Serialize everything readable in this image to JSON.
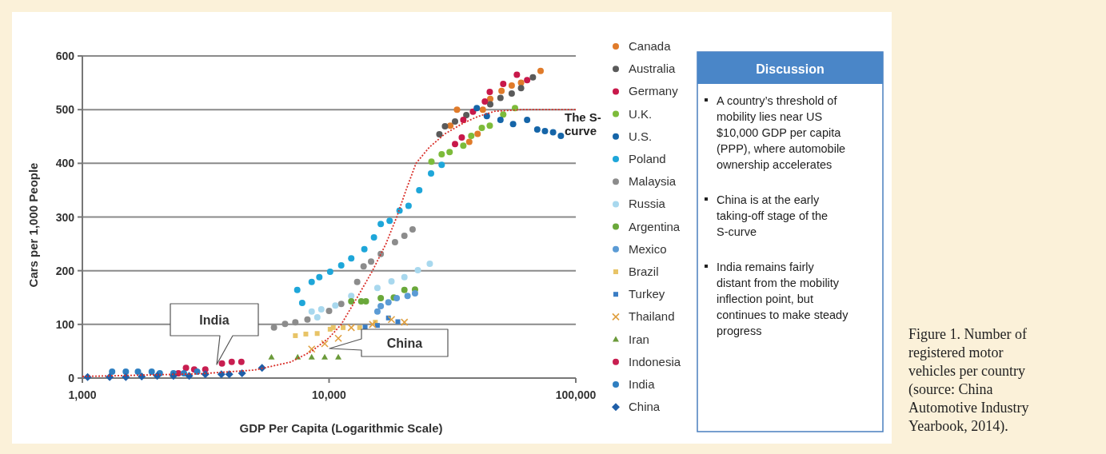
{
  "chart_data": {
    "type": "scatter",
    "xlabel": "GDP Per Capita (Logarithmic Scale)",
    "ylabel": "Cars per 1,000 People",
    "log": "x",
    "xlim": [
      1000,
      100000
    ],
    "ylim": [
      0,
      600
    ],
    "xticks": [
      {
        "value": 1000,
        "label": "1,000"
      },
      {
        "value": 10000,
        "label": "10,000"
      },
      {
        "value": 100000,
        "label": "100,000"
      }
    ],
    "yticks": [
      0,
      100,
      200,
      300,
      400,
      500,
      600
    ],
    "grid": "y",
    "legend": "right",
    "series": [
      {
        "name": "Canada",
        "color": "#e07b2a",
        "marker": "circle",
        "x": [
          31000,
          33000,
          37000,
          40000,
          42000,
          45000,
          50000,
          55000,
          60000,
          72000
        ],
        "values": [
          470,
          500,
          440,
          455,
          500,
          520,
          535,
          545,
          550,
          572
        ]
      },
      {
        "name": "Australia",
        "color": "#5a5a5a",
        "marker": "circle",
        "x": [
          28000,
          29500,
          32400,
          36000,
          45000,
          49500,
          55000,
          60000,
          67000
        ],
        "values": [
          454,
          469,
          478,
          490,
          510,
          522,
          530,
          540,
          560
        ]
      },
      {
        "name": "Germany",
        "color": "#c8184a",
        "marker": "circle",
        "x": [
          32400,
          34500,
          35000,
          38300,
          42800,
          44800,
          50800,
          57700,
          63500
        ],
        "values": [
          436,
          448,
          481,
          496,
          515,
          533,
          548,
          565,
          555
        ]
      },
      {
        "name": "U.K.",
        "color": "#7dbb3a",
        "marker": "circle",
        "x": [
          26000,
          28600,
          30800,
          35000,
          37700,
          41600,
          44800,
          50800,
          56700
        ],
        "values": [
          403,
          417,
          421,
          433,
          451,
          466,
          470,
          491,
          503
        ]
      },
      {
        "name": "U.S.",
        "color": "#1565a8",
        "marker": "circle",
        "x": [
          39700,
          43600,
          49500,
          55700,
          63500,
          69800,
          75000,
          80900,
          87000
        ],
        "values": [
          503,
          488,
          481,
          473,
          481,
          463,
          460,
          458,
          451
        ]
      },
      {
        "name": "Poland",
        "color": "#1ea6d9",
        "marker": "circle",
        "x": [
          7430,
          7780,
          8500,
          9130,
          10100,
          11200,
          12300,
          13900,
          15200,
          16200,
          17600,
          19300,
          21000,
          23200,
          25900,
          28600
        ],
        "values": [
          164,
          140,
          179,
          188,
          198,
          210,
          223,
          240,
          262,
          287,
          293,
          312,
          321,
          350,
          381,
          397
        ]
      },
      {
        "name": "Malaysia",
        "color": "#8c8c8c",
        "marker": "circle",
        "x": [
          5980,
          6630,
          7300,
          8170,
          10000,
          11200,
          13000,
          13800,
          14800,
          16200,
          18500,
          20200,
          21800
        ],
        "values": [
          94,
          101,
          104,
          109,
          125,
          138,
          179,
          208,
          217,
          231,
          253,
          265,
          277
        ]
      },
      {
        "name": "Russia",
        "color": "#a8d8ee",
        "marker": "circle",
        "x": [
          8500,
          8960,
          9300,
          10600,
          12300,
          15700,
          17900,
          20200,
          22900,
          25600
        ],
        "values": [
          124,
          113,
          128,
          135,
          153,
          168,
          180,
          188,
          201,
          213
        ]
      },
      {
        "name": "Argentina",
        "color": "#6aa83a",
        "marker": "circle",
        "x": [
          12300,
          13500,
          14100,
          16200,
          18300,
          20200,
          22300
        ],
        "values": [
          143,
          143,
          143,
          149,
          150,
          164,
          165
        ]
      },
      {
        "name": "Mexico",
        "color": "#5b9bd5",
        "marker": "circle",
        "x": [
          15700,
          16200,
          17400,
          18800,
          20800,
          22300
        ],
        "values": [
          124,
          134,
          141,
          149,
          153,
          158
        ]
      },
      {
        "name": "Brazil",
        "color": "#e8c467",
        "marker": "square",
        "x": [
          7300,
          8050,
          8950,
          10100,
          10400,
          11400,
          13300,
          15400
        ],
        "values": [
          79,
          82,
          83,
          91,
          94,
          94,
          94,
          104
        ]
      },
      {
        "name": "Turkey",
        "color": "#3a7dc4",
        "marker": "square",
        "x": [
          14000,
          15700,
          17400,
          19000
        ],
        "values": [
          95,
          98,
          112,
          105
        ]
      },
      {
        "name": "Thailand",
        "color": "#e0a040",
        "marker": "cross",
        "x": [
          8500,
          9600,
          10900,
          12300,
          15000,
          17900,
          20200
        ],
        "values": [
          54,
          64,
          74,
          94,
          100,
          109,
          104
        ]
      },
      {
        "name": "Iran",
        "color": "#6b9a3a",
        "marker": "triangle",
        "x": [
          5840,
          7460,
          8500,
          9600,
          10900
        ],
        "values": [
          39,
          39,
          39,
          39,
          39
        ]
      },
      {
        "name": "Indonesia",
        "color": "#c81e50",
        "marker": "circle",
        "x": [
          2450,
          2630,
          2840,
          3150,
          3680,
          4030,
          4410
        ],
        "values": [
          9,
          19,
          16,
          16,
          27,
          30,
          30
        ]
      },
      {
        "name": "India",
        "color": "#2f7fc1",
        "marker": "circle",
        "x": [
          1320,
          1500,
          1680,
          1910,
          2060,
          2340,
          2580,
          2920
        ],
        "values": [
          12,
          12,
          12,
          12,
          9,
          9,
          9,
          12
        ]
      },
      {
        "name": "China",
        "color": "#1f5fa8",
        "marker": "diamond",
        "x": [
          1050,
          1290,
          1500,
          1740,
          2010,
          2340,
          2710,
          3150,
          3660,
          3940,
          4440,
          5350
        ],
        "values": [
          2,
          2,
          2,
          3,
          4,
          4,
          4,
          7,
          7,
          7,
          9,
          19
        ]
      },
      {
        "name": "The S-curve",
        "type": "line",
        "color": "#d9302a",
        "line_style": "dotted",
        "marker": "none",
        "x": [
          1000,
          3000,
          5000,
          7000,
          8500,
          10000,
          11200,
          13000,
          15000,
          17000,
          18800,
          20500,
          22500,
          25500,
          29500,
          35000,
          40000,
          47000,
          60000,
          100000
        ],
        "values": [
          3,
          8,
          15,
          30,
          50,
          75,
          100,
          150,
          200,
          250,
          300,
          350,
          400,
          430,
          455,
          475,
          487,
          497,
          500,
          500
        ]
      }
    ],
    "annotations": [
      "India",
      "China",
      "Discussion",
      "A country’s threshold of mobility lies near US $10,000 GDP per capita (PPP), where automobile ownership accelerates",
      "China is at the early taking-off stage of the S-curve",
      "India remains fairly distant from the mobility inflection point, but continues to make steady progress",
      "Figure 1. Number of registered motor vehicles per country (source: China Automotive Industry Yearbook, 2014)."
    ]
  }
}
